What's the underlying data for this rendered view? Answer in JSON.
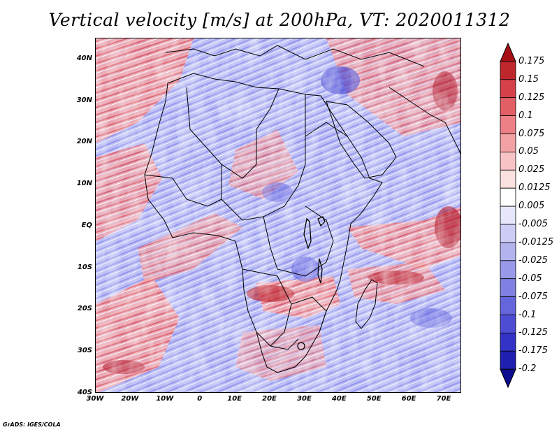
{
  "title": "Vertical velocity [m/s] at 200hPa, VT: 2020011312",
  "credit": "GrADS: IGES/COLA",
  "map": {
    "lon_range": [
      -30,
      75
    ],
    "lat_range": [
      -40,
      45
    ],
    "lat_ticks": [
      "40N",
      "30N",
      "20N",
      "10N",
      "EQ",
      "10S",
      "20S",
      "30S",
      "40S"
    ],
    "lon_ticks": [
      "30W",
      "20W",
      "10W",
      "0",
      "10E",
      "20E",
      "30E",
      "40E",
      "50E",
      "60E",
      "70E"
    ],
    "field_colors": {
      "strong_ascent": "#b2182b",
      "ascent": "#ef8a8a",
      "neutral": "#ffffff",
      "descent": "#9aa0f0",
      "strong_descent": "#3333cc"
    },
    "coastline_color": "#000000"
  },
  "colorbar": {
    "labels": [
      "0.175",
      "0.15",
      "0.125",
      "0.1",
      "0.075",
      "0.05",
      "0.025",
      "0.0125",
      "0.005",
      "-0.005",
      "-0.0125",
      "-0.025",
      "-0.05",
      "-0.075",
      "-0.1",
      "-0.125",
      "-0.175",
      "-0.2"
    ],
    "colors": [
      "#a50f15",
      "#c0272d",
      "#d6404a",
      "#e35f66",
      "#ec8086",
      "#f2a1a4",
      "#f7c3c4",
      "#fbe0e0",
      "#ffffff",
      "#e6e6fa",
      "#ccccf5",
      "#b3b3f0",
      "#9999ea",
      "#8080e3",
      "#6666dc",
      "#4d4dd3",
      "#3333c8",
      "#1f1fb0",
      "#0c0c8f"
    ]
  }
}
